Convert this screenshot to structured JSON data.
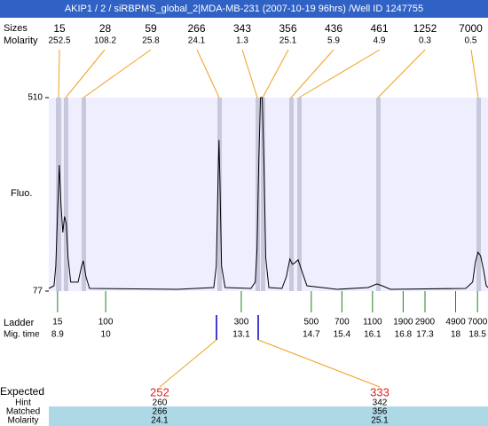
{
  "header": {
    "title": "AKIP1 / 2 / siRBPMS_global_2|MDA-MB-231 (2007-10-19 96hrs) /Well ID 1247755"
  },
  "peaks": {
    "row_labels": [
      "Sizes",
      "Molarity"
    ],
    "sizes": [
      15,
      28,
      59,
      266,
      343,
      356,
      436,
      461,
      1252,
      7000
    ],
    "molarity": [
      252.5,
      108.2,
      25.8,
      24.1,
      1.3,
      25.1,
      5.9,
      4.9,
      0.3,
      0.5
    ]
  },
  "chart_data": {
    "type": "line",
    "y_label": "Fluo.",
    "color": "#000000",
    "xlim": [
      8.7,
      18.74
    ],
    "ylim": [
      77,
      510
    ],
    "yticks": [
      77,
      510
    ],
    "x": [
      8.7,
      8.82,
      8.86,
      8.9,
      8.94,
      8.98,
      9.02,
      9.06,
      9.1,
      9.14,
      9.2,
      9.37,
      9.45,
      9.49,
      9.55,
      9.63,
      11.64,
      12.47,
      12.53,
      12.57,
      12.59,
      12.61,
      12.65,
      12.73,
      13.32,
      13.42,
      13.46,
      13.5,
      13.54,
      13.58,
      13.62,
      13.66,
      13.73,
      14.03,
      14.13,
      14.21,
      14.27,
      14.33,
      14.4,
      14.48,
      14.6,
      15.29,
      16.0,
      16.2,
      16.32,
      16.51,
      18.23,
      18.39,
      18.45,
      18.51,
      18.57,
      18.64,
      18.7,
      18.74
    ],
    "values": [
      83,
      89,
      133,
      252,
      359,
      268,
      208,
      244,
      228,
      152,
      97,
      97,
      133,
      145,
      109,
      83,
      81,
      85,
      133,
      331,
      415,
      331,
      133,
      85,
      83,
      97,
      172,
      371,
      510,
      510,
      351,
      152,
      85,
      83,
      109,
      149,
      137,
      141,
      147,
      123,
      89,
      81,
      85,
      93,
      89,
      81,
      83,
      97,
      141,
      164,
      156,
      123,
      89,
      85
    ]
  },
  "ladder": {
    "label": "Ladder",
    "time_label": "Mig. time",
    "sizes": [
      15,
      100,
      300,
      500,
      700,
      1100,
      1900,
      2900,
      4900,
      7000
    ],
    "times": [
      8.9,
      10,
      13.1,
      14.7,
      15.4,
      16.1,
      16.8,
      17.3,
      18,
      18.5
    ]
  },
  "expected": {
    "label": "Expected",
    "row_labels": [
      "Hint",
      "Matched",
      "Molarity"
    ],
    "values": [
      252,
      333
    ],
    "hint": [
      260,
      342
    ],
    "matched": [
      266,
      356
    ],
    "molarity": [
      24.1,
      25.1
    ]
  }
}
